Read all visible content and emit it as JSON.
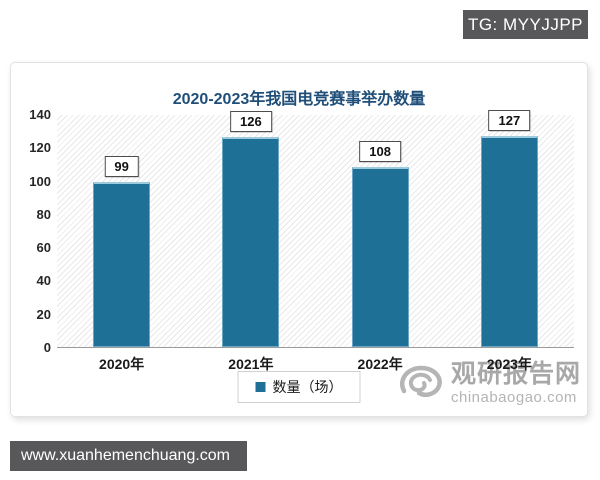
{
  "badge": {
    "text": "TG: MYYJJPP"
  },
  "bottom_bar": {
    "text": "www.xuanhemenchuang.com"
  },
  "watermark": {
    "name": "观研报告网",
    "domain": "chinabaogao.com"
  },
  "chart_data": {
    "type": "bar",
    "title": "2020-2023年我国电竞赛事举办数量",
    "categories": [
      "2020年",
      "2021年",
      "2022年",
      "2023年"
    ],
    "values": [
      99,
      126,
      108,
      127
    ],
    "series_name": "数量（场）",
    "xlabel": "",
    "ylabel": "",
    "ylim": [
      0,
      140
    ],
    "yticks": [
      0,
      20,
      40,
      60,
      80,
      100,
      120,
      140
    ],
    "grid": false,
    "legend_position": "bottom",
    "bar_color": "#1f7096",
    "title_color": "#1f4e79",
    "plot_background": "diagonal-hatch"
  }
}
